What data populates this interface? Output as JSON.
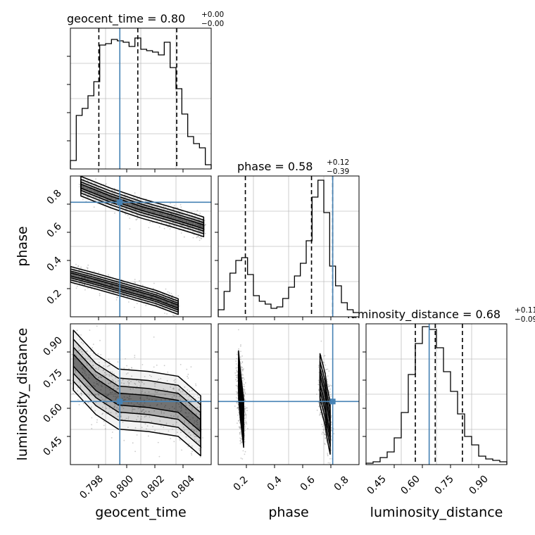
{
  "figure": {
    "type": "corner-plot"
  },
  "chart_data": {
    "type": "corner",
    "parameters": [
      "geocent_time",
      "phase",
      "luminosity_distance"
    ],
    "truths": {
      "geocent_time": 0.7996,
      "phase": 0.705,
      "luminosity_distance": 0.65
    },
    "colors": {
      "truth": "#4682b4",
      "hist": "#000000",
      "grid": "#c0c0c0",
      "density": "#000000"
    },
    "grid": true,
    "titles": [
      {
        "param": "geocent_time",
        "label": "geocent_time = 0.80",
        "sup": "+0.00",
        "sub": "−0.00"
      },
      {
        "param": "phase",
        "label": "phase = 0.58",
        "sup": "+0.12",
        "sub": "−0.39"
      },
      {
        "param": "luminosity_distance",
        "label": "luminosity_distance = 0.68",
        "sup": "+0.11",
        "sub": "−0.09"
      }
    ],
    "marginals": [
      {
        "param": "geocent_time",
        "range": [
          0.7963,
          0.8057
        ],
        "quantiles": [
          0.7982,
          0.8008,
          0.8034
        ],
        "ylim": [
          0,
          100
        ],
        "counts": [
          6,
          38,
          43,
          52,
          62,
          88,
          89,
          92,
          91,
          90,
          87,
          93,
          85,
          84,
          83,
          81,
          90,
          72,
          57,
          39,
          23,
          18,
          15,
          3
        ]
      },
      {
        "param": "phase",
        "range": [
          0.03,
          0.86
        ],
        "quantiles": [
          0.19,
          0.58,
          0.705
        ],
        "ylim": [
          0,
          100
        ],
        "counts": [
          5,
          18,
          31,
          40,
          42,
          30,
          15,
          11,
          9,
          6,
          7,
          13,
          21,
          29,
          38,
          54,
          85,
          97,
          74,
          36,
          22,
          10,
          5,
          3
        ]
      },
      {
        "param": "luminosity_distance",
        "range": [
          0.39,
          0.97
        ],
        "quantiles": [
          0.593,
          0.675,
          0.787
        ],
        "ylim": [
          0,
          100
        ],
        "counts": [
          1,
          2,
          5,
          9,
          19,
          37,
          64,
          86,
          98,
          96,
          83,
          66,
          52,
          36,
          20,
          14,
          6,
          4,
          3,
          2
        ]
      }
    ],
    "joint": [
      {
        "x": "geocent_time",
        "y": "phase",
        "xlim": [
          0.7963,
          0.8057
        ],
        "ylim": [
          0.03,
          0.86
        ],
        "ridges": [
          {
            "points": [
              [
                0.797,
                0.8
              ],
              [
                0.799,
                0.73
              ],
              [
                0.801,
                0.67
              ],
              [
                0.803,
                0.62
              ],
              [
                0.8045,
                0.58
              ],
              [
                0.8052,
                0.56
              ]
            ],
            "sigma": 0.035
          },
          {
            "points": [
              [
                0.7963,
                0.28
              ],
              [
                0.798,
                0.24
              ],
              [
                0.8,
                0.19
              ],
              [
                0.802,
                0.14
              ],
              [
                0.8035,
                0.09
              ]
            ],
            "sigma": 0.028
          }
        ]
      },
      {
        "x": "geocent_time",
        "y": "luminosity_distance",
        "xlim": [
          0.7963,
          0.8057
        ],
        "ylim": [
          0.39,
          0.97
        ],
        "ridges": [
          {
            "points": [
              [
                0.7965,
                0.82
              ],
              [
                0.798,
                0.72
              ],
              [
                0.7995,
                0.66
              ],
              [
                0.8015,
                0.65
              ],
              [
                0.8035,
                0.63
              ],
              [
                0.805,
                0.55
              ]
            ],
            "sigma": 0.075
          }
        ]
      },
      {
        "x": "phase",
        "y": "luminosity_distance",
        "xlim": [
          0.03,
          0.86
        ],
        "ylim": [
          0.39,
          0.97
        ],
        "ridges": [
          {
            "points": [
              [
                0.15,
                0.76
              ],
              [
                0.16,
                0.68
              ],
              [
                0.17,
                0.62
              ],
              [
                0.18,
                0.56
              ]
            ],
            "sigma": 0.06
          },
          {
            "points": [
              [
                0.63,
                0.74
              ],
              [
                0.66,
                0.66
              ],
              [
                0.67,
                0.61
              ],
              [
                0.69,
                0.54
              ]
            ],
            "sigma": 0.065
          }
        ]
      }
    ],
    "ticks": {
      "geocent_time": [
        "0.798",
        "0.800",
        "0.802",
        "0.804"
      ],
      "phase_x": [
        "0.2",
        "0.4",
        "0.6",
        "0.8"
      ],
      "phase_y": [
        "0.2",
        "0.4",
        "0.6",
        "0.8"
      ],
      "luminosity_distance": [
        "0.45",
        "0.60",
        "0.75",
        "0.90"
      ]
    },
    "axis_labels": {
      "geocent_time": "geocent_time",
      "phase": "phase",
      "luminosity_distance": "luminosity_distance"
    }
  }
}
